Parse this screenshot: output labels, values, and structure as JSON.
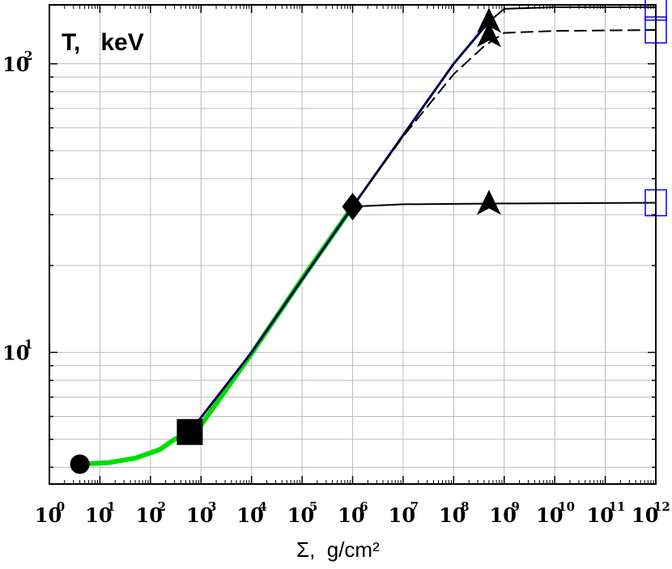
{
  "chart_data": {
    "type": "line",
    "title": "",
    "ylabel": "T,   keV",
    "xlabel": "Σ,  g/cm²",
    "x_scale": "log",
    "y_scale": "log",
    "xlim": [
      1,
      1000000000000.0
    ],
    "ylim": [
      3.5,
      160
    ],
    "grid": true,
    "x_ticks": [
      {
        "base": "10",
        "exp": "0"
      },
      {
        "base": "10",
        "exp": "1"
      },
      {
        "base": "10",
        "exp": "2"
      },
      {
        "base": "10",
        "exp": "3"
      },
      {
        "base": "10",
        "exp": "4"
      },
      {
        "base": "10",
        "exp": "5"
      },
      {
        "base": "10",
        "exp": "6"
      },
      {
        "base": "10",
        "exp": "7"
      },
      {
        "base": "10",
        "exp": "8"
      },
      {
        "base": "10",
        "exp": "9"
      },
      {
        "base": "10",
        "exp": "10"
      },
      {
        "base": "10",
        "exp": "11"
      },
      {
        "base": "10",
        "exp": "12"
      }
    ],
    "y_ticks": [
      {
        "value": 10,
        "base": "10",
        "exp": "1"
      },
      {
        "value": 100,
        "base": "10",
        "exp": "2"
      }
    ],
    "series": [
      {
        "color": "#00dd00",
        "dash": "solid",
        "width": 6,
        "x": [
          4,
          15,
          50,
          150,
          300,
          600,
          1000.0,
          10000.0,
          100000.0,
          1000000.0
        ],
        "y": [
          4.1,
          4.15,
          4.3,
          4.6,
          5.0,
          5.3,
          5.6,
          9.9,
          18,
          32
        ]
      },
      {
        "color": "#0000ff",
        "dash": "solid",
        "width": 3,
        "x": [
          600,
          10000.0,
          1000000.0,
          100000000.0,
          500000000.0
        ],
        "y": [
          5.3,
          10.0,
          32,
          100,
          140
        ]
      },
      {
        "color": "#000000",
        "dash": "solid",
        "width": 2,
        "x": [
          600,
          10000.0,
          1000000.0,
          100000000.0,
          500000000.0,
          1000000000.0,
          10000000000.0,
          1000000000000.0
        ],
        "y": [
          5.3,
          10.0,
          32,
          100,
          140,
          155,
          157,
          157
        ]
      },
      {
        "color": "#000000",
        "dash": "dashed",
        "width": 2,
        "x": [
          1000000.0,
          10000000.0,
          100000000.0,
          400000000.0,
          1000000000.0,
          10000000000.0,
          1000000000000.0
        ],
        "y": [
          32,
          56,
          92,
          115,
          128,
          130,
          131
        ]
      },
      {
        "color": "#000000",
        "dash": "solid",
        "width": 2,
        "x": [
          1000000.0,
          10000000.0,
          1000000000.0,
          1000000000000.0
        ],
        "y": [
          32,
          32.6,
          32.8,
          33
        ]
      }
    ],
    "markers": [
      {
        "shape": "circle",
        "x": 4,
        "y": 4.1,
        "color": "#000000"
      },
      {
        "shape": "square",
        "x": 600,
        "y": 5.3,
        "color": "#000000"
      },
      {
        "shape": "diamond",
        "x": 1000000.0,
        "y": 32,
        "color": "#000000"
      },
      {
        "shape": "triangle",
        "x": 500000000.0,
        "y": 140,
        "color": "#000000"
      },
      {
        "shape": "triangle",
        "x": 500000000.0,
        "y": 125,
        "color": "#000000"
      },
      {
        "shape": "triangle",
        "x": 500000000.0,
        "y": 32.8,
        "color": "#000000"
      },
      {
        "shape": "open-square",
        "x": 1000000000000.0,
        "y": 157,
        "color": "#0000ff"
      },
      {
        "shape": "open-square",
        "x": 1000000000000.0,
        "y": 131,
        "color": "#0000ff"
      },
      {
        "shape": "open-square",
        "x": 1000000000000.0,
        "y": 33,
        "color": "#0000ff"
      }
    ]
  }
}
